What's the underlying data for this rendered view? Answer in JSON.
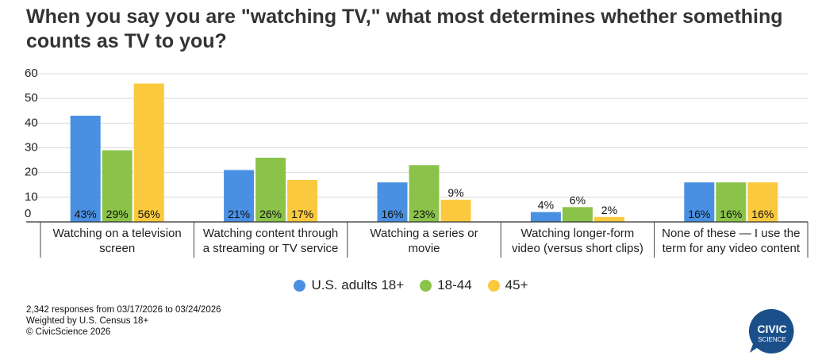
{
  "chart_data": {
    "type": "bar",
    "title": "When you say you are \"watching TV,\" what most determines whether something counts as TV to you?",
    "categories": [
      [
        "Watching on a television",
        "screen"
      ],
      [
        "Watching content through",
        "a streaming or TV service"
      ],
      [
        "Watching a series or",
        "movie"
      ],
      [
        "Watching longer-form",
        "video (versus short clips)"
      ],
      [
        "None of these — I use the",
        "term for any video content"
      ]
    ],
    "series": [
      {
        "name": "U.S. adults 18+",
        "color": "#4a90e2",
        "values": [
          43,
          21,
          16,
          4,
          16
        ]
      },
      {
        "name": "18-44",
        "color": "#8bc34a",
        "values": [
          29,
          26,
          23,
          6,
          16
        ]
      },
      {
        "name": "45+",
        "color": "#fbc93d",
        "values": [
          56,
          17,
          9,
          2,
          16
        ]
      }
    ],
    "ylim": [
      0,
      60
    ],
    "yticks": [
      0,
      10,
      20,
      30,
      40,
      50,
      60
    ],
    "value_suffix": "%",
    "legend_position": "bottom-center",
    "grid": true
  },
  "footnotes": [
    "2,342 responses from 03/17/2026 to 03/24/2026",
    "Weighted by U.S. Census 18+",
    "© CivicScience 2026"
  ],
  "logo": {
    "line1": "CIVIC",
    "line2": "SCIENCE",
    "color": "#1a4f8a"
  }
}
